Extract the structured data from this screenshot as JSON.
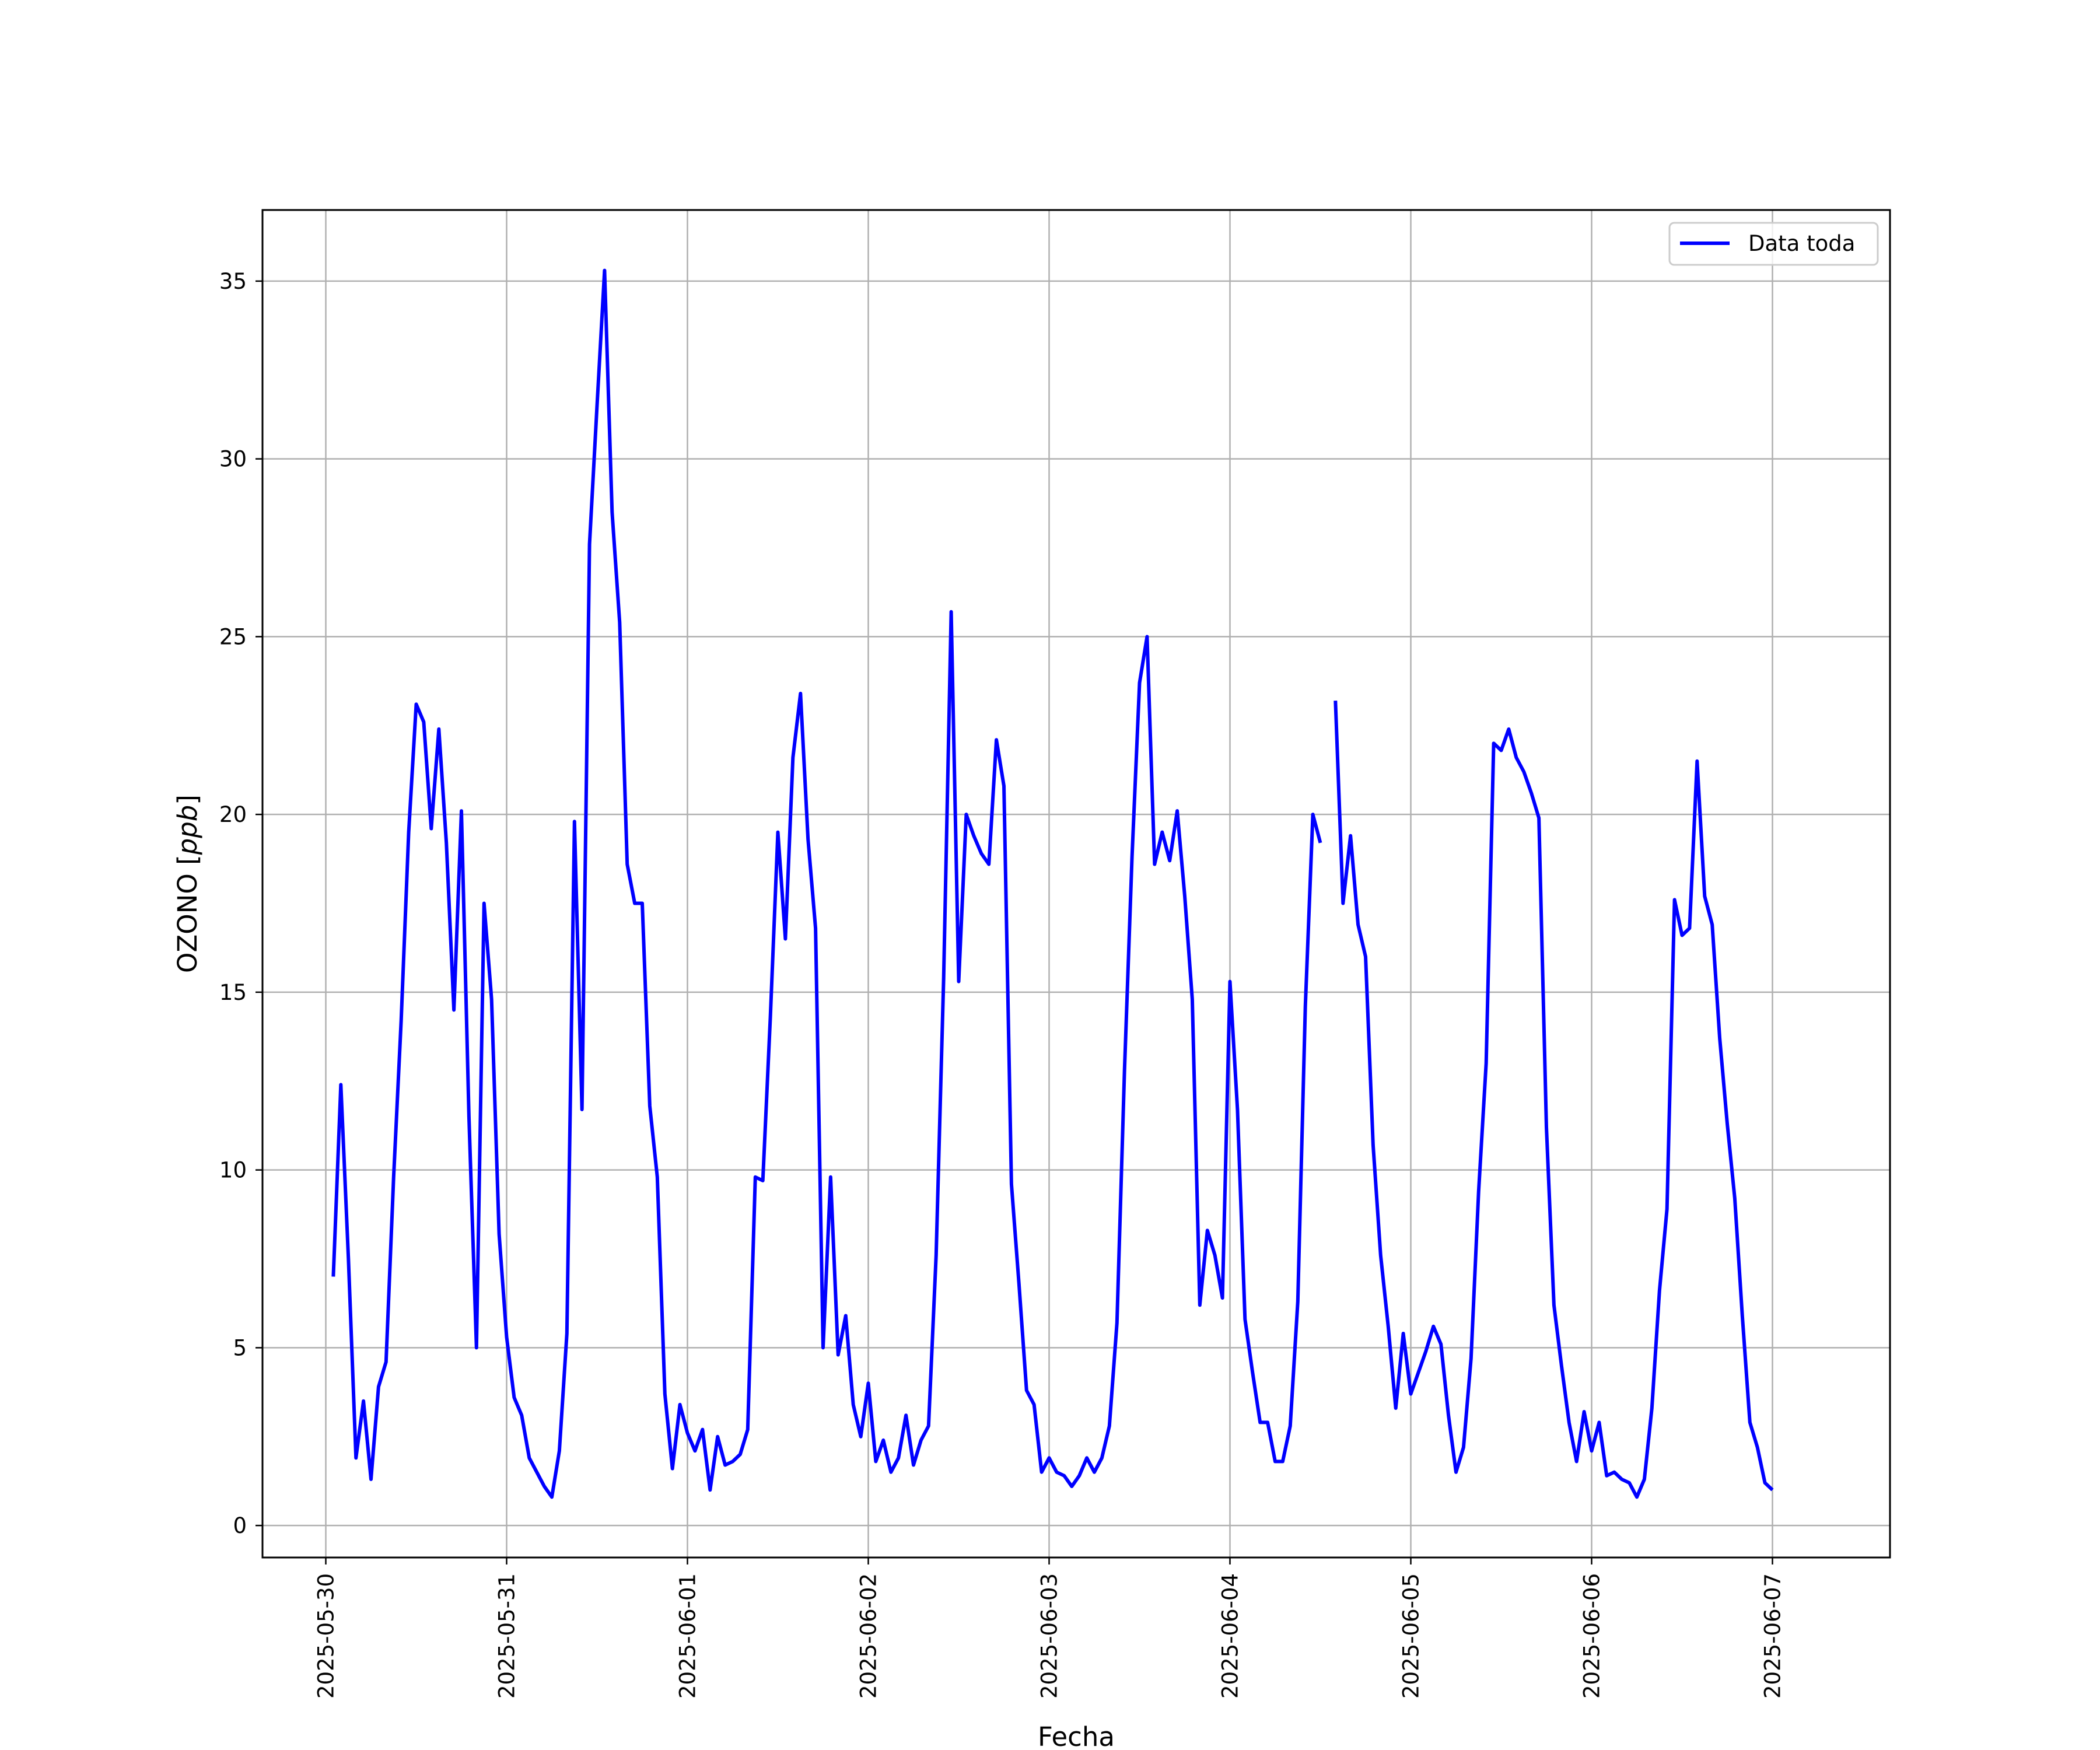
{
  "chart_data": {
    "type": "line",
    "xlabel": "Fecha",
    "ylabel": "OZONO [ppb]",
    "ylabel_parts": {
      "text": "OZONO ",
      "lb": "[",
      "unit": "ppb",
      "rb": "]"
    },
    "xlim": [
      "2025-05-29T15:36",
      "2025-06-07T15:36"
    ],
    "ylim": [
      -0.9,
      37.0
    ],
    "yticks": [
      0,
      5,
      10,
      15,
      20,
      25,
      30,
      35
    ],
    "xticks": [
      "2025-05-30",
      "2025-05-31",
      "2025-06-01",
      "2025-06-02",
      "2025-06-03",
      "2025-06-04",
      "2025-06-05",
      "2025-06-06",
      "2025-06-07"
    ],
    "grid": true,
    "legend_position": "top-right",
    "series": [
      {
        "name": "Data toda",
        "color": "#0000ff",
        "start": "2025-05-30T01:00",
        "step_hours": 1,
        "values": [
          7.0,
          12.4,
          7.5,
          1.9,
          3.5,
          1.3,
          3.9,
          4.6,
          9.8,
          14.2,
          19.5,
          23.1,
          22.6,
          19.6,
          22.4,
          19.2,
          14.5,
          20.1,
          11.5,
          5.0,
          17.5,
          14.8,
          8.2,
          5.3,
          3.6,
          3.1,
          1.9,
          1.5,
          1.1,
          0.8,
          2.1,
          5.4,
          19.8,
          11.7,
          27.6,
          31.5,
          35.3,
          28.5,
          25.4,
          18.6,
          17.5,
          17.5,
          11.8,
          9.8,
          3.7,
          1.6,
          3.4,
          2.6,
          2.1,
          2.7,
          1.0,
          2.5,
          1.7,
          1.8,
          2.0,
          2.7,
          9.8,
          9.7,
          14.3,
          19.5,
          16.5,
          21.6,
          23.4,
          19.3,
          16.8,
          5.0,
          9.8,
          4.8,
          5.9,
          3.4,
          2.5,
          4.0,
          1.8,
          2.4,
          1.5,
          1.9,
          3.1,
          1.7,
          2.4,
          2.8,
          7.6,
          15.4,
          25.7,
          15.3,
          20.0,
          19.4,
          18.9,
          18.6,
          22.1,
          20.8,
          9.6,
          6.8,
          3.8,
          3.4,
          1.5,
          1.9,
          1.5,
          1.4,
          1.1,
          1.4,
          1.9,
          1.5,
          1.9,
          2.8,
          5.7,
          12.8,
          18.8,
          23.7,
          25.0,
          18.6,
          19.5,
          18.7,
          20.1,
          17.7,
          14.8,
          6.2,
          8.3,
          7.6,
          6.4,
          15.3,
          11.7,
          5.8,
          4.3,
          2.9,
          2.9,
          1.8,
          1.8,
          2.8,
          6.3,
          14.6,
          20.0,
          19.2,
          null,
          23.2,
          17.5,
          19.4,
          16.9,
          16.0,
          10.7,
          7.6,
          5.6,
          3.3,
          5.4,
          3.7,
          4.3,
          4.9,
          5.6,
          5.1,
          3.1,
          1.5,
          2.2,
          4.7,
          9.4,
          13.0,
          22.0,
          21.8,
          22.4,
          21.6,
          21.2,
          20.6,
          19.9,
          11.2,
          6.2,
          4.5,
          2.9,
          1.8,
          3.2,
          2.1,
          2.9,
          1.4,
          1.5,
          1.3,
          1.2,
          0.8,
          1.3,
          3.3,
          6.6,
          8.9,
          17.6,
          16.6,
          16.8,
          21.5,
          17.7,
          16.9,
          13.7,
          11.3,
          9.2,
          5.9,
          2.9,
          2.2,
          1.2,
          1.0
        ]
      }
    ]
  }
}
